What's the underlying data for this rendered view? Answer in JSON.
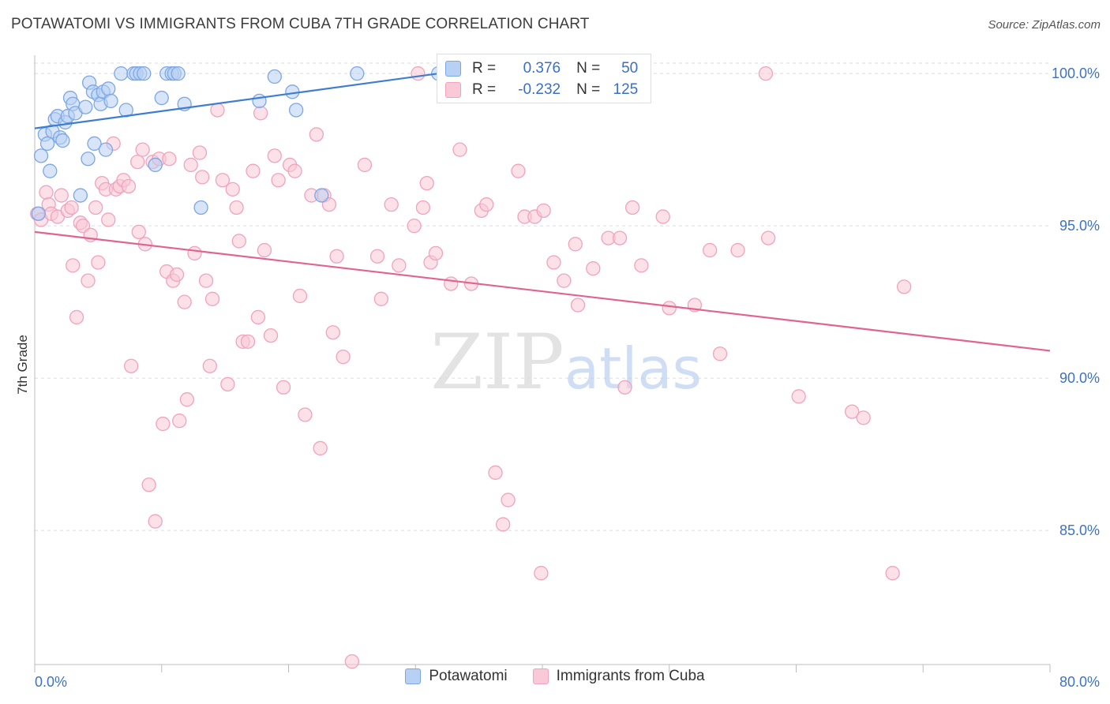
{
  "title": "POTAWATOMI VS IMMIGRANTS FROM CUBA 7TH GRADE CORRELATION CHART",
  "source": "Source: ZipAtlas.com",
  "watermark": {
    "zip": "ZIP",
    "atlas": "atlas"
  },
  "stats": [
    {
      "r_label": "R =",
      "r_value": "0.376",
      "n_label": "N =",
      "n_value": "50",
      "color": "#7ba7e6",
      "fill": "#b8d0f3"
    },
    {
      "r_label": "R =",
      "r_value": "-0.232",
      "n_label": "N =",
      "n_value": "125",
      "color": "#f0a3bc",
      "fill": "#f9c9d7"
    }
  ],
  "legend": [
    {
      "label": "Potawatomi",
      "color": "#7ba7e6",
      "fill": "#b8d0f3"
    },
    {
      "label": "Immigrants from Cuba",
      "color": "#f0a3bc",
      "fill": "#f9c9d7"
    }
  ],
  "chart_data": {
    "type": "scatter",
    "title": "POTAWATOMI VS IMMIGRANTS FROM CUBA 7TH GRADE CORRELATION CHART",
    "xlabel": "",
    "ylabel": "7th Grade",
    "xlim": [
      0,
      80
    ],
    "ylim": [
      80.6,
      100.6
    ],
    "x_tick_labels": [
      "0.0%",
      "80.0%"
    ],
    "y_ticks": [
      85,
      90,
      95,
      100
    ],
    "y_tick_labels": [
      "85.0%",
      "90.0%",
      "95.0%",
      "100.0%"
    ],
    "grid": true,
    "legend_position": "bottom",
    "series": [
      {
        "name": "Potawatomi",
        "color": "#3f7dd1",
        "fill": "#b8d0f3",
        "stroke": "#7ba7e6",
        "trend": {
          "x": [
            0,
            31.8
          ],
          "y": [
            98.2,
            100.0
          ]
        },
        "points": [
          [
            0.3,
            95.4
          ],
          [
            0.5,
            97.3
          ],
          [
            0.8,
            98.0
          ],
          [
            1.0,
            97.7
          ],
          [
            1.2,
            96.8
          ],
          [
            1.4,
            98.1
          ],
          [
            1.6,
            98.5
          ],
          [
            1.8,
            98.6
          ],
          [
            2.0,
            97.9
          ],
          [
            2.2,
            97.8
          ],
          [
            2.4,
            98.4
          ],
          [
            2.6,
            98.6
          ],
          [
            2.8,
            99.2
          ],
          [
            3.0,
            99.0
          ],
          [
            3.2,
            98.7
          ],
          [
            3.6,
            96.0
          ],
          [
            4.0,
            98.9
          ],
          [
            4.2,
            97.2
          ],
          [
            4.3,
            99.7
          ],
          [
            4.6,
            99.4
          ],
          [
            4.7,
            97.7
          ],
          [
            5.0,
            99.3
          ],
          [
            5.2,
            99.0
          ],
          [
            5.4,
            99.4
          ],
          [
            5.6,
            97.5
          ],
          [
            5.8,
            99.5
          ],
          [
            6.0,
            99.1
          ],
          [
            6.8,
            100.0
          ],
          [
            7.2,
            98.8
          ],
          [
            7.8,
            100.0
          ],
          [
            8.0,
            100.0
          ],
          [
            8.3,
            100.0
          ],
          [
            8.6,
            100.0
          ],
          [
            9.5,
            97.0
          ],
          [
            10.0,
            99.2
          ],
          [
            10.4,
            100.0
          ],
          [
            10.8,
            100.0
          ],
          [
            11.0,
            100.0
          ],
          [
            11.3,
            100.0
          ],
          [
            11.8,
            99.0
          ],
          [
            13.1,
            95.6
          ],
          [
            17.7,
            99.1
          ],
          [
            18.9,
            99.9
          ],
          [
            20.3,
            99.4
          ],
          [
            20.6,
            98.8
          ],
          [
            22.6,
            96.0
          ],
          [
            25.4,
            100.0
          ],
          [
            31.8,
            100.0
          ],
          [
            37.2,
            100.0
          ],
          [
            43.0,
            100.0
          ]
        ]
      },
      {
        "name": "Immigrants from Cuba",
        "color": "#e0648f",
        "fill": "#f9c9d7",
        "stroke": "#f0a3bc",
        "trend": {
          "x": [
            0,
            80
          ],
          "y": [
            94.8,
            90.9
          ]
        },
        "points": [
          [
            0.2,
            95.4
          ],
          [
            0.5,
            95.2
          ],
          [
            0.9,
            96.1
          ],
          [
            1.1,
            95.7
          ],
          [
            1.3,
            95.4
          ],
          [
            1.8,
            95.3
          ],
          [
            2.1,
            96.0
          ],
          [
            2.6,
            95.5
          ],
          [
            2.9,
            95.6
          ],
          [
            3.0,
            93.7
          ],
          [
            3.3,
            92.0
          ],
          [
            3.6,
            95.1
          ],
          [
            3.8,
            95.0
          ],
          [
            4.2,
            93.2
          ],
          [
            4.4,
            94.7
          ],
          [
            4.8,
            95.6
          ],
          [
            5.0,
            93.8
          ],
          [
            5.3,
            96.4
          ],
          [
            5.6,
            96.2
          ],
          [
            5.8,
            95.2
          ],
          [
            6.2,
            97.7
          ],
          [
            6.4,
            96.2
          ],
          [
            6.7,
            96.3
          ],
          [
            7.0,
            96.5
          ],
          [
            7.4,
            96.3
          ],
          [
            7.6,
            90.4
          ],
          [
            8.1,
            97.1
          ],
          [
            8.2,
            94.8
          ],
          [
            8.5,
            97.5
          ],
          [
            8.7,
            94.4
          ],
          [
            9.0,
            86.5
          ],
          [
            9.3,
            97.1
          ],
          [
            9.5,
            85.3
          ],
          [
            9.8,
            97.2
          ],
          [
            10.1,
            88.5
          ],
          [
            10.4,
            93.5
          ],
          [
            10.6,
            97.2
          ],
          [
            10.9,
            93.2
          ],
          [
            11.2,
            93.4
          ],
          [
            11.4,
            88.6
          ],
          [
            11.8,
            92.5
          ],
          [
            12.0,
            89.3
          ],
          [
            12.3,
            97.0
          ],
          [
            12.6,
            94.1
          ],
          [
            13.0,
            97.4
          ],
          [
            13.2,
            96.6
          ],
          [
            13.5,
            93.2
          ],
          [
            13.8,
            90.4
          ],
          [
            14.0,
            92.6
          ],
          [
            14.4,
            98.8
          ],
          [
            14.8,
            96.5
          ],
          [
            15.2,
            89.8
          ],
          [
            15.6,
            96.2
          ],
          [
            15.9,
            95.6
          ],
          [
            16.1,
            94.5
          ],
          [
            16.4,
            91.2
          ],
          [
            16.8,
            91.2
          ],
          [
            17.2,
            96.8
          ],
          [
            17.6,
            92.0
          ],
          [
            17.8,
            98.7
          ],
          [
            18.1,
            94.2
          ],
          [
            18.6,
            91.4
          ],
          [
            18.9,
            97.3
          ],
          [
            19.2,
            96.5
          ],
          [
            19.6,
            89.7
          ],
          [
            20.1,
            97.0
          ],
          [
            20.5,
            96.8
          ],
          [
            20.9,
            92.7
          ],
          [
            21.3,
            88.8
          ],
          [
            21.8,
            96.0
          ],
          [
            22.2,
            98.0
          ],
          [
            22.5,
            87.7
          ],
          [
            22.8,
            96.0
          ],
          [
            23.2,
            95.7
          ],
          [
            23.5,
            91.5
          ],
          [
            23.8,
            94.0
          ],
          [
            24.3,
            90.7
          ],
          [
            25.0,
            80.7
          ],
          [
            26.0,
            97.0
          ],
          [
            27.0,
            94.0
          ],
          [
            27.3,
            92.6
          ],
          [
            28.1,
            95.7
          ],
          [
            28.7,
            93.7
          ],
          [
            29.9,
            95.0
          ],
          [
            30.2,
            100.0
          ],
          [
            30.6,
            95.6
          ],
          [
            30.9,
            96.4
          ],
          [
            31.2,
            93.8
          ],
          [
            31.6,
            94.1
          ],
          [
            32.8,
            93.1
          ],
          [
            33.5,
            97.5
          ],
          [
            34.4,
            93.1
          ],
          [
            35.2,
            95.5
          ],
          [
            35.6,
            95.7
          ],
          [
            36.3,
            86.9
          ],
          [
            36.9,
            85.2
          ],
          [
            37.3,
            86.0
          ],
          [
            38.1,
            96.8
          ],
          [
            38.6,
            95.3
          ],
          [
            39.4,
            95.3
          ],
          [
            39.9,
            83.6
          ],
          [
            40.1,
            95.5
          ],
          [
            40.9,
            93.8
          ],
          [
            41.7,
            93.2
          ],
          [
            42.6,
            94.4
          ],
          [
            42.8,
            92.4
          ],
          [
            44.0,
            93.6
          ],
          [
            45.2,
            94.6
          ],
          [
            46.1,
            94.6
          ],
          [
            46.5,
            89.7
          ],
          [
            47.1,
            95.6
          ],
          [
            47.8,
            93.7
          ],
          [
            49.5,
            95.3
          ],
          [
            50.0,
            92.3
          ],
          [
            52.0,
            92.4
          ],
          [
            53.2,
            94.2
          ],
          [
            54.0,
            90.8
          ],
          [
            55.4,
            94.2
          ],
          [
            57.6,
            100.0
          ],
          [
            57.8,
            94.6
          ],
          [
            60.2,
            89.4
          ],
          [
            64.4,
            88.9
          ],
          [
            65.3,
            88.7
          ],
          [
            67.6,
            83.6
          ],
          [
            68.5,
            93.0
          ]
        ]
      }
    ]
  }
}
